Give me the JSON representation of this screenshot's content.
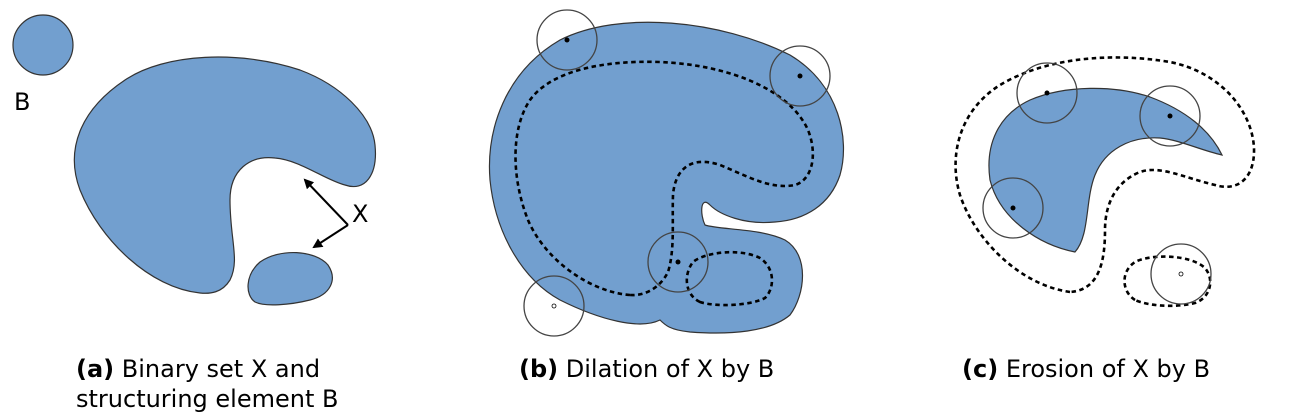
{
  "figure": {
    "panel_a": {
      "element_label": "B",
      "set_label": "X",
      "caption_prefix": "(a)",
      "caption_line1": "Binary set X and",
      "caption_line2": "structuring element B"
    },
    "panel_b": {
      "caption_prefix": "(b)",
      "caption_text": "Dilation of X by B"
    },
    "panel_c": {
      "caption_prefix": "(c)",
      "caption_text": "Erosion of X by B"
    },
    "colors": {
      "shape_fill": "#729fcf",
      "outline": "#333333"
    }
  }
}
